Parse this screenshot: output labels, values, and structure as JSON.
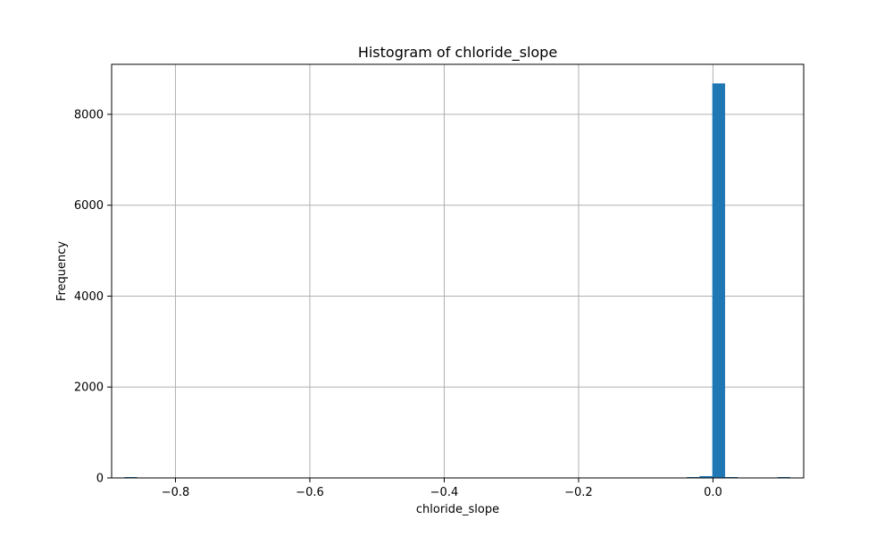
{
  "chart_data": {
    "type": "bar",
    "title": "Histogram of chloride_slope",
    "xlabel": "chloride_slope",
    "ylabel": "Frequency",
    "xlim": [
      -0.895,
      0.135
    ],
    "ylim": [
      0,
      9100
    ],
    "grid": true,
    "color": "#1f77b4",
    "x_ticks": [
      -0.8,
      -0.6,
      -0.4,
      -0.2,
      0.0
    ],
    "x_tick_labels": [
      "−0.8",
      "−0.6",
      "−0.4",
      "−0.2",
      "0.0"
    ],
    "y_ticks": [
      0,
      2000,
      4000,
      6000,
      8000
    ],
    "y_tick_labels": [
      "0",
      "2000",
      "4000",
      "6000",
      "8000"
    ],
    "bins": [
      {
        "x0": -0.876,
        "x1": -0.857,
        "count": 1
      },
      {
        "x0": -0.039,
        "x1": -0.02,
        "count": 1
      },
      {
        "x0": -0.02,
        "x1": -0.001,
        "count": 40
      },
      {
        "x0": -0.001,
        "x1": 0.018,
        "count": 8680
      },
      {
        "x0": 0.018,
        "x1": 0.037,
        "count": 2
      },
      {
        "x0": 0.096,
        "x1": 0.115,
        "count": 1
      }
    ]
  }
}
